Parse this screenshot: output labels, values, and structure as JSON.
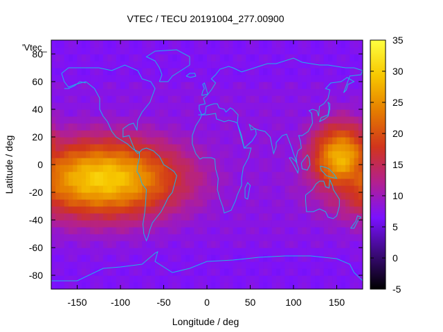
{
  "chart_data": {
    "type": "heatmap",
    "title": "VTEC / TECU 20191004_277.00900",
    "xlabel": "Longitude / deg",
    "ylabel": "Latitude / deg",
    "inset_label": "'Vtec_",
    "xlim": [
      -180,
      180
    ],
    "ylim": [
      -90,
      90
    ],
    "x_ticks": [
      -150,
      -100,
      -50,
      0,
      50,
      100,
      150
    ],
    "y_ticks": [
      80,
      60,
      40,
      20,
      0,
      -20,
      -40,
      -60,
      -80
    ],
    "colorbar": {
      "min": -5,
      "max": 35,
      "ticks": [
        35,
        30,
        25,
        20,
        15,
        10,
        5,
        0,
        -5
      ],
      "palette": [
        "#000000",
        "#3b0a7a",
        "#7a11ff",
        "#b3208f",
        "#d1351c",
        "#e57c00",
        "#f7c700",
        "#ffff40"
      ]
    },
    "colors": {
      "coastline": "#1fb4e8",
      "background_vtec": "#8a1df0"
    },
    "vtec_regions": [
      {
        "name": "Pacific-Americas equatorial anomaly",
        "lon_range": [
          -180,
          -25
        ],
        "lat_range": [
          -30,
          30
        ],
        "peak_vtec": 30,
        "peak_lon": -120,
        "peak_lat": -10
      },
      {
        "name": "Western Pacific equatorial anomaly",
        "lon_range": [
          120,
          180
        ],
        "lat_range": [
          -25,
          28
        ],
        "peak_vtec": 28,
        "peak_lon": 155,
        "peak_lat": 5
      },
      {
        "name": "Background",
        "vtec": 7
      }
    ]
  }
}
